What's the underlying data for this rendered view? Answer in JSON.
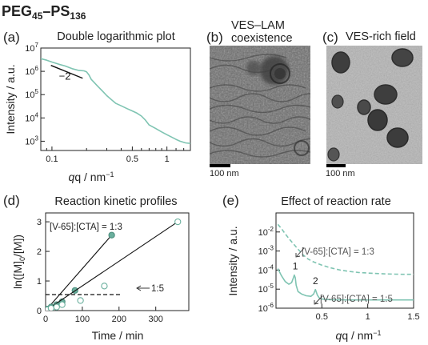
{
  "figure_title": {
    "main": "PEG",
    "sub1": "45",
    "dash": "–PS",
    "sub2": "136"
  },
  "colors": {
    "teal": "#7fc4b2",
    "teal_dark": "#6aaf9d",
    "axis": "#222222",
    "dashed": "#222222"
  },
  "chart_data": [
    {
      "panel": "(a)",
      "type": "line",
      "title": "Double logarithmic plot",
      "xlabel": "q / nm",
      "xlabel_sup": "−1",
      "ylabel": "Intensity / a.u.",
      "xscale": "log",
      "yscale": "log",
      "xlim": [
        0.08,
        1.6
      ],
      "ylim": [
        400,
        10000000
      ],
      "xticks": [
        {
          "v": 0.1,
          "l": "0.1"
        },
        {
          "v": 0.5,
          "l": "0.5"
        },
        {
          "v": 1,
          "l": "1"
        }
      ],
      "yticks": [
        {
          "v": 1000,
          "b": "10",
          "e": "3"
        },
        {
          "v": 10000,
          "b": "10",
          "e": "4"
        },
        {
          "v": 100000,
          "b": "10",
          "e": "5"
        },
        {
          "v": 1000000,
          "b": "10",
          "e": "6"
        },
        {
          "v": 10000000,
          "b": "10",
          "e": "7"
        }
      ],
      "slope_label": "−2",
      "slope_line": [
        [
          0.098,
          1800000
        ],
        [
          0.185,
          505000
        ]
      ],
      "series": [
        {
          "x": [
            0.08,
            0.09,
            0.1,
            0.115,
            0.13,
            0.15,
            0.17,
            0.19,
            0.2,
            0.21,
            0.22,
            0.25,
            0.28,
            0.3,
            0.33,
            0.36,
            0.4,
            0.45,
            0.5,
            0.55,
            0.6,
            0.65,
            0.7,
            0.8,
            0.9,
            1.0,
            1.1,
            1.2,
            1.3,
            1.45,
            1.6
          ],
          "y": [
            3500000,
            3000000,
            2500000,
            2000000,
            1700000,
            1300000,
            1100000,
            1050000,
            950000,
            700000,
            450000,
            230000,
            130000,
            90000,
            60000,
            42000,
            33000,
            25000,
            20000,
            16000,
            12000,
            8000,
            5000,
            3500,
            2500,
            1900,
            1500,
            1200,
            1000,
            850,
            800
          ]
        }
      ]
    },
    {
      "panel": "(d)",
      "type": "scatter",
      "title": "Reaction kinetic profiles",
      "xlabel": "Time / min",
      "ylabel": "ln([M]",
      "ylabel_sub": "0",
      "ylabel_end": "/[M])",
      "xlim": [
        0,
        390
      ],
      "ylim": [
        0,
        3.3
      ],
      "xticks": [
        {
          "v": 0,
          "l": "0"
        },
        {
          "v": 100,
          "l": "100"
        },
        {
          "v": 200,
          "l": "200"
        },
        {
          "v": 300,
          "l": "300"
        }
      ],
      "yticks": [
        {
          "v": 0,
          "l": "0"
        },
        {
          "v": 1,
          "l": "1"
        },
        {
          "v": 2,
          "l": "2"
        },
        {
          "v": 3,
          "l": "3"
        }
      ],
      "dashed_y": 0.54,
      "series": [
        {
          "name": "[V-65]:[CTA] = 1:3",
          "marker": "filled",
          "x": [
            0,
            5,
            15,
            30,
            45,
            80,
            180
          ],
          "y": [
            0,
            0.05,
            0.12,
            0.2,
            0.3,
            0.68,
            2.55
          ]
        },
        {
          "name": "1:5",
          "marker": "open",
          "x": [
            0,
            5,
            15,
            30,
            45,
            95,
            160,
            360
          ],
          "y": [
            0,
            0.03,
            0.08,
            0.12,
            0.2,
            0.34,
            0.83,
            3.0
          ]
        }
      ]
    },
    {
      "panel": "(e)",
      "type": "line",
      "title": "Effect of reaction rate",
      "xlabel": "q / nm",
      "xlabel_sup": "−1",
      "ylabel": "Intensity / a.u.",
      "yscale": "log",
      "xlim": [
        0,
        1.5
      ],
      "ylim": [
        1e-06,
        0.1
      ],
      "xticks": [
        {
          "v": 0.5,
          "l": "0.5"
        },
        {
          "v": 1,
          "l": "1"
        },
        {
          "v": 1.5,
          "l": "1.5"
        }
      ],
      "yticks": [
        {
          "v": 1e-06,
          "b": "10",
          "e": "-6"
        },
        {
          "v": 1e-05,
          "b": "10",
          "e": "-5"
        },
        {
          "v": 0.0001,
          "b": "10",
          "e": "-4"
        },
        {
          "v": 0.001,
          "b": "10",
          "e": "-3"
        },
        {
          "v": 0.01,
          "b": "10",
          "e": "-2"
        }
      ],
      "peak_labels": [
        {
          "text": "1",
          "x": 0.21,
          "y": 0.00011
        },
        {
          "text": "2",
          "x": 0.43,
          "y": 1.8e-05
        }
      ],
      "series": [
        {
          "name": "[V-65]:[CTA] = 1:3",
          "style": "dashed",
          "x": [
            0.02,
            0.06,
            0.1,
            0.15,
            0.2,
            0.25,
            0.3,
            0.35,
            0.4,
            0.5,
            0.6,
            0.7,
            0.8,
            0.9,
            1.0,
            1.1,
            1.2,
            1.3,
            1.4,
            1.5
          ],
          "y": [
            0.025,
            0.015,
            0.008,
            0.004,
            0.0021,
            0.0011,
            0.0006,
            0.00038,
            0.00028,
            0.00018,
            0.00013,
            0.0001,
            8.5e-05,
            7.5e-05,
            7e-05,
            6.6e-05,
            6.3e-05,
            6.1e-05,
            6e-05,
            6e-05
          ]
        },
        {
          "name": "[V-65]:[CTA] = 1:5",
          "style": "solid",
          "x": [
            0.02,
            0.06,
            0.1,
            0.14,
            0.17,
            0.19,
            0.2,
            0.21,
            0.22,
            0.24,
            0.28,
            0.33,
            0.38,
            0.41,
            0.43,
            0.45,
            0.47,
            0.5,
            0.6,
            0.8,
            1.0,
            1.2,
            1.4,
            1.5
          ],
          "y": [
            0.00012,
            5e-05,
            2.5e-05,
            1.8e-05,
            2.2e-05,
            4e-05,
            5.5e-05,
            4e-05,
            1.6e-05,
            7.5e-06,
            5.5e-06,
            4.5e-06,
            4.2e-06,
            5.5e-06,
            9.5e-06,
            5e-06,
            3.5e-06,
            3e-06,
            2.8e-06,
            2.7e-06,
            2.7e-06,
            2.7e-06,
            2.7e-06,
            2.7e-06
          ]
        }
      ]
    }
  ],
  "panels": {
    "b": {
      "label": "(b)",
      "title_line1": "VES–LAM",
      "title_line2": "coexistence",
      "scale_label": "100 nm"
    },
    "c": {
      "label": "(c)",
      "title": "VES-rich field",
      "scale_label": "100 nm"
    }
  }
}
